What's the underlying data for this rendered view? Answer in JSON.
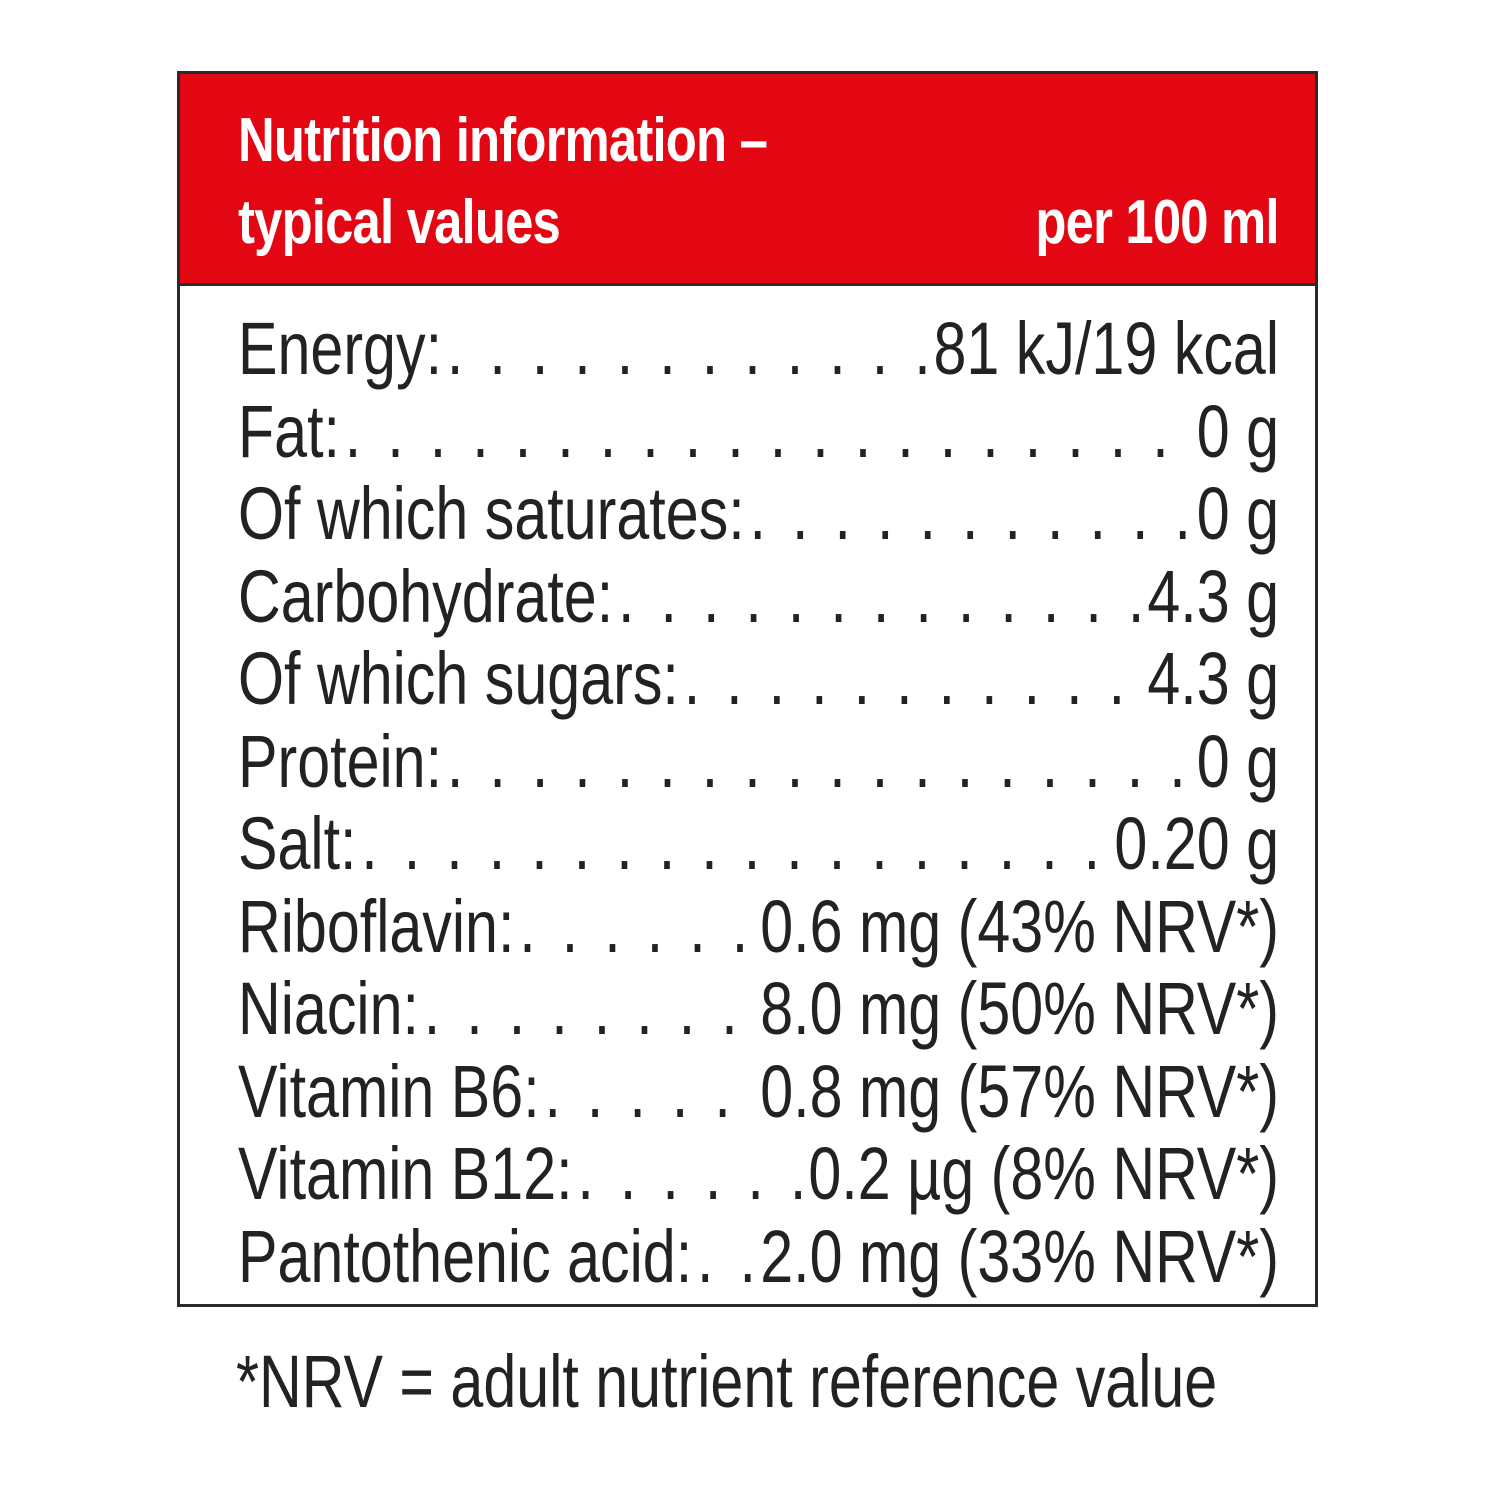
{
  "header": {
    "title_line1": "Nutrition information –",
    "title_line2": "typical values",
    "per_label": "per 100 ml"
  },
  "rows": [
    {
      "label": "Energy:",
      "value": "81 kJ/19 kcal"
    },
    {
      "label": "Fat:",
      "value": "0 g"
    },
    {
      "label": "Of which saturates:",
      "value": "0 g"
    },
    {
      "label": "Carbohydrate:",
      "value": "4.3 g"
    },
    {
      "label": "Of which sugars:",
      "value": "4.3 g"
    },
    {
      "label": "Protein:",
      "value": "0 g"
    },
    {
      "label": "Salt:",
      "value": "0.20 g"
    },
    {
      "label": "Riboflavin:",
      "value": "0.6 mg (43% NRV*)"
    },
    {
      "label": "Niacin:",
      "value": "8.0 mg (50% NRV*)"
    },
    {
      "label": "Vitamin B6:",
      "value": "0.8 mg (57% NRV*)"
    },
    {
      "label": "Vitamin B12:",
      "value": "0.2 µg (8% NRV*)"
    },
    {
      "label": "Pantothenic acid:",
      "value": "2.0 mg (33% NRV*)"
    }
  ],
  "footnote": "*NRV = adult nutrient reference value",
  "colors": {
    "header_bg": "#e30613",
    "border": "#2a2a2a",
    "text": "#222222"
  }
}
